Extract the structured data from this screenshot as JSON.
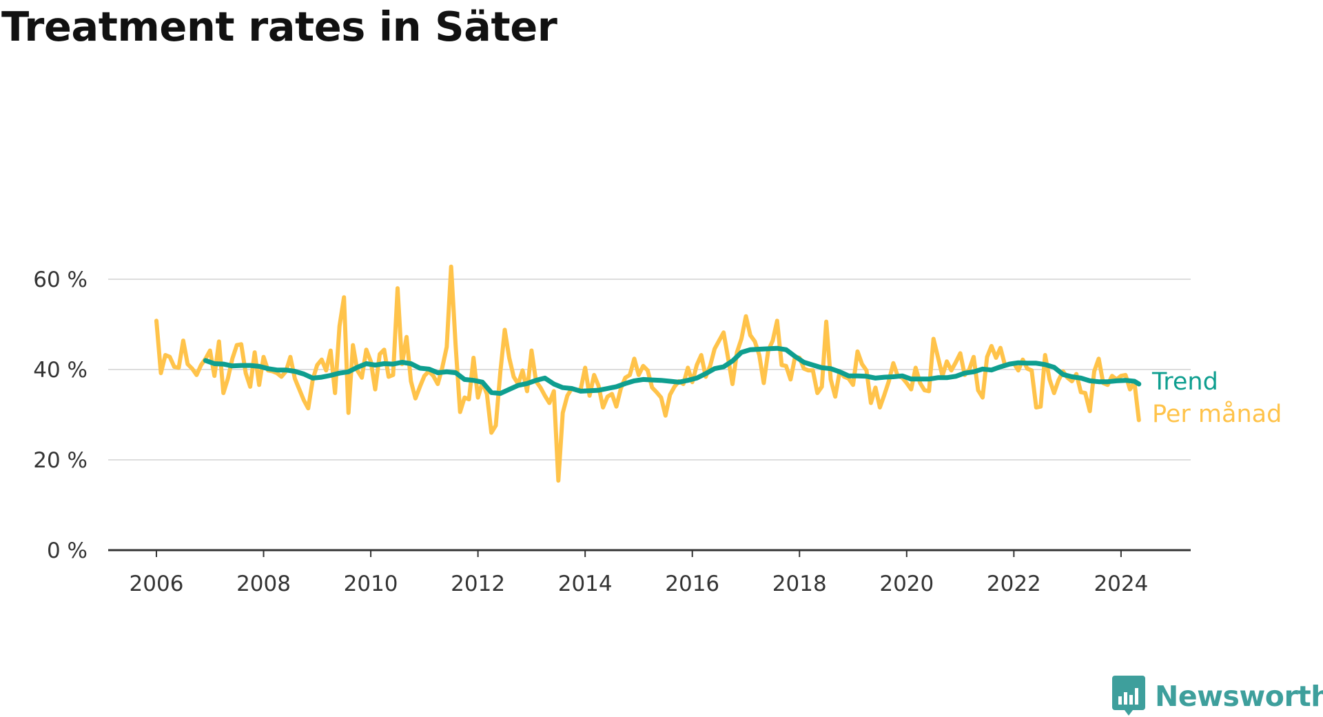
{
  "title": "Treatment rates in Säter",
  "subtitle": "",
  "brand": {
    "name": "Newsworthy",
    "icon": "newsworthy-logo-icon",
    "color": "#3e9f9c"
  },
  "chart_data": {
    "type": "line",
    "title": "Treatment rates in Säter",
    "subtitle": "",
    "xlabel": "",
    "ylabel": "",
    "x_ticks": [
      "2006",
      "2008",
      "2010",
      "2012",
      "2014",
      "2016",
      "2018",
      "2020",
      "2022",
      "2024"
    ],
    "y_ticks": [
      "0 %",
      "20 %",
      "40 %",
      "60 %"
    ],
    "y_tick_values": [
      0,
      20,
      40,
      60
    ],
    "ylim": [
      0,
      60
    ],
    "xlim": [
      2005.1,
      2025.3
    ],
    "grid": true,
    "legend": "direct labels at line ends",
    "series": [
      {
        "name": "Trend",
        "color": "#0e9e8f",
        "x": [
          2006.917,
          2007.083,
          2007.25,
          2007.417,
          2007.583,
          2007.75,
          2007.917,
          2008.083,
          2008.25,
          2008.417,
          2008.583,
          2008.75,
          2008.917,
          2009.083,
          2009.25,
          2009.417,
          2009.583,
          2009.75,
          2009.917,
          2010.083,
          2010.25,
          2010.417,
          2010.583,
          2010.75,
          2010.917,
          2011.083,
          2011.25,
          2011.417,
          2011.583,
          2011.75,
          2011.917,
          2012.083,
          2012.25,
          2012.417,
          2012.583,
          2012.75,
          2012.917,
          2013.083,
          2013.25,
          2013.417,
          2013.583,
          2013.75,
          2013.917,
          2014.083,
          2014.25,
          2014.417,
          2014.583,
          2014.75,
          2014.917,
          2015.083,
          2015.25,
          2015.417,
          2015.583,
          2015.75,
          2015.917,
          2016.083,
          2016.25,
          2016.417,
          2016.583,
          2016.75,
          2016.917,
          2017.083,
          2017.25,
          2017.417,
          2017.583,
          2017.75,
          2017.917,
          2018.083,
          2018.25,
          2018.417,
          2018.583,
          2018.75,
          2018.917,
          2019.083,
          2019.25,
          2019.417,
          2019.583,
          2019.75,
          2019.917,
          2020.083,
          2020.25,
          2020.417,
          2020.583,
          2020.75,
          2020.917,
          2021.083,
          2021.25,
          2021.417,
          2021.583,
          2021.75,
          2021.917,
          2022.083,
          2022.25,
          2022.417,
          2022.583,
          2022.75,
          2022.917,
          2023.083,
          2023.25,
          2023.417,
          2023.583,
          2023.75,
          2023.917,
          2024.083,
          2024.25,
          2024.333
        ],
        "values": [
          42.0,
          41.3,
          41.2,
          40.8,
          40.9,
          40.9,
          40.7,
          40.2,
          39.9,
          39.9,
          39.6,
          39.0,
          38.1,
          38.3,
          38.7,
          39.2,
          39.5,
          40.5,
          41.3,
          41.0,
          41.3,
          41.2,
          41.6,
          41.3,
          40.3,
          40.1,
          39.3,
          39.5,
          39.3,
          37.8,
          37.6,
          37.2,
          34.9,
          34.7,
          35.6,
          36.5,
          36.9,
          37.6,
          38.1,
          36.8,
          36.0,
          35.8,
          35.2,
          35.3,
          35.4,
          35.8,
          36.2,
          36.9,
          37.5,
          37.8,
          37.7,
          37.6,
          37.4,
          37.2,
          37.6,
          38.1,
          39.1,
          40.2,
          40.6,
          41.9,
          43.8,
          44.4,
          44.5,
          44.6,
          44.7,
          44.4,
          42.9,
          41.6,
          41.0,
          40.4,
          40.2,
          39.5,
          38.6,
          38.6,
          38.5,
          38.1,
          38.3,
          38.4,
          38.6,
          37.9,
          37.9,
          37.9,
          38.2,
          38.2,
          38.5,
          39.2,
          39.5,
          40.1,
          39.9,
          40.6,
          41.2,
          41.5,
          41.4,
          41.4,
          41.1,
          40.5,
          38.9,
          38.4,
          38.1,
          37.5,
          37.3,
          37.3,
          37.5,
          37.6,
          37.4,
          36.8
        ]
      },
      {
        "name": "Per månad",
        "color": "#ffc34a",
        "x": [
          2006.0,
          2006.083,
          2006.167,
          2006.25,
          2006.333,
          2006.417,
          2006.5,
          2006.583,
          2006.667,
          2006.75,
          2006.833,
          2006.917,
          2007.0,
          2007.083,
          2007.167,
          2007.25,
          2007.333,
          2007.417,
          2007.5,
          2007.583,
          2007.667,
          2007.75,
          2007.833,
          2007.917,
          2008.0,
          2008.083,
          2008.167,
          2008.25,
          2008.333,
          2008.417,
          2008.5,
          2008.583,
          2008.667,
          2008.75,
          2008.833,
          2008.917,
          2009.0,
          2009.083,
          2009.167,
          2009.25,
          2009.333,
          2009.417,
          2009.5,
          2009.583,
          2009.667,
          2009.75,
          2009.833,
          2009.917,
          2010.0,
          2010.083,
          2010.167,
          2010.25,
          2010.333,
          2010.417,
          2010.5,
          2010.583,
          2010.667,
          2010.75,
          2010.833,
          2010.917,
          2011.0,
          2011.083,
          2011.167,
          2011.25,
          2011.333,
          2011.417,
          2011.5,
          2011.583,
          2011.667,
          2011.75,
          2011.833,
          2011.917,
          2012.0,
          2012.083,
          2012.167,
          2012.25,
          2012.333,
          2012.417,
          2012.5,
          2012.583,
          2012.667,
          2012.75,
          2012.833,
          2012.917,
          2013.0,
          2013.083,
          2013.167,
          2013.25,
          2013.333,
          2013.417,
          2013.5,
          2013.583,
          2013.667,
          2013.75,
          2013.833,
          2013.917,
          2014.0,
          2014.083,
          2014.167,
          2014.25,
          2014.333,
          2014.417,
          2014.5,
          2014.583,
          2014.667,
          2014.75,
          2014.833,
          2014.917,
          2015.0,
          2015.083,
          2015.167,
          2015.25,
          2015.333,
          2015.417,
          2015.5,
          2015.583,
          2015.667,
          2015.75,
          2015.833,
          2015.917,
          2016.0,
          2016.083,
          2016.167,
          2016.25,
          2016.333,
          2016.417,
          2016.5,
          2016.583,
          2016.667,
          2016.75,
          2016.833,
          2016.917,
          2017.0,
          2017.083,
          2017.167,
          2017.25,
          2017.333,
          2017.417,
          2017.5,
          2017.583,
          2017.667,
          2017.75,
          2017.833,
          2017.917,
          2018.0,
          2018.083,
          2018.167,
          2018.25,
          2018.333,
          2018.417,
          2018.5,
          2018.583,
          2018.667,
          2018.75,
          2018.833,
          2018.917,
          2019.0,
          2019.083,
          2019.167,
          2019.25,
          2019.333,
          2019.417,
          2019.5,
          2019.583,
          2019.667,
          2019.75,
          2019.833,
          2019.917,
          2020.0,
          2020.083,
          2020.167,
          2020.25,
          2020.333,
          2020.417,
          2020.5,
          2020.583,
          2020.667,
          2020.75,
          2020.833,
          2020.917,
          2021.0,
          2021.083,
          2021.167,
          2021.25,
          2021.333,
          2021.417,
          2021.5,
          2021.583,
          2021.667,
          2021.75,
          2021.833,
          2021.917,
          2022.0,
          2022.083,
          2022.167,
          2022.25,
          2022.333,
          2022.417,
          2022.5,
          2022.583,
          2022.667,
          2022.75,
          2022.833,
          2022.917,
          2023.0,
          2023.083,
          2023.167,
          2023.25,
          2023.333,
          2023.417,
          2023.5,
          2023.583,
          2023.667,
          2023.75,
          2023.833,
          2023.917,
          2024.0,
          2024.083,
          2024.167,
          2024.25,
          2024.333
        ],
        "values": [
          50.8,
          39.2,
          43.2,
          42.8,
          40.6,
          40.4,
          46.4,
          41.2,
          40.2,
          38.8,
          41.0,
          42.4,
          44.2,
          38.6,
          46.2,
          34.8,
          38.0,
          42.4,
          45.4,
          45.6,
          39.2,
          36.2,
          43.8,
          36.6,
          42.8,
          39.8,
          39.6,
          39.2,
          38.4,
          39.6,
          42.8,
          38.0,
          35.6,
          33.2,
          31.4,
          37.8,
          41.0,
          42.2,
          39.8,
          44.2,
          34.8,
          49.6,
          56.0,
          30.4,
          45.4,
          39.8,
          38.2,
          44.4,
          41.8,
          35.6,
          43.4,
          44.4,
          38.4,
          38.8,
          58.0,
          41.2,
          47.2,
          37.4,
          33.6,
          36.2,
          38.6,
          39.6,
          38.6,
          36.8,
          40.4,
          45.0,
          62.8,
          45.4,
          30.6,
          33.8,
          33.4,
          42.6,
          33.8,
          37.2,
          34.6,
          26.0,
          27.6,
          39.4,
          48.8,
          42.6,
          38.4,
          36.8,
          39.8,
          35.2,
          44.2,
          37.4,
          36.0,
          34.2,
          32.6,
          35.2,
          15.4,
          30.4,
          34.2,
          35.8,
          35.4,
          35.6,
          40.4,
          34.2,
          38.8,
          36.4,
          31.6,
          34.0,
          34.6,
          31.8,
          35.8,
          38.2,
          38.8,
          42.4,
          38.8,
          40.8,
          39.8,
          36.0,
          35.0,
          33.8,
          29.8,
          34.4,
          36.2,
          37.4,
          36.8,
          40.4,
          37.2,
          41.0,
          43.2,
          38.4,
          40.8,
          44.6,
          46.4,
          48.2,
          42.6,
          36.8,
          43.8,
          46.8,
          51.8,
          47.6,
          46.2,
          43.2,
          37.0,
          44.2,
          46.4,
          50.8,
          41.0,
          40.8,
          37.8,
          42.8,
          42.6,
          40.2,
          39.8,
          39.8,
          34.8,
          36.2,
          50.6,
          37.8,
          34.0,
          39.6,
          38.4,
          38.0,
          36.6,
          44.0,
          41.2,
          39.8,
          32.6,
          36.0,
          31.6,
          34.4,
          37.4,
          41.4,
          38.6,
          38.2,
          37.0,
          35.6,
          40.4,
          37.0,
          35.4,
          35.2,
          46.8,
          42.8,
          38.6,
          41.8,
          39.8,
          41.6,
          43.6,
          38.8,
          40.0,
          42.8,
          35.4,
          33.8,
          42.8,
          45.2,
          42.6,
          44.8,
          41.0,
          41.2,
          41.4,
          39.8,
          42.2,
          40.2,
          39.8,
          31.6,
          31.8,
          43.2,
          37.8,
          34.8,
          37.6,
          39.6,
          38.2,
          37.4,
          39.0,
          35.0,
          34.8,
          30.8,
          39.6,
          42.4,
          37.0,
          36.6,
          38.6,
          37.8,
          38.6,
          38.8,
          35.6,
          37.2,
          28.8
        ]
      }
    ]
  }
}
